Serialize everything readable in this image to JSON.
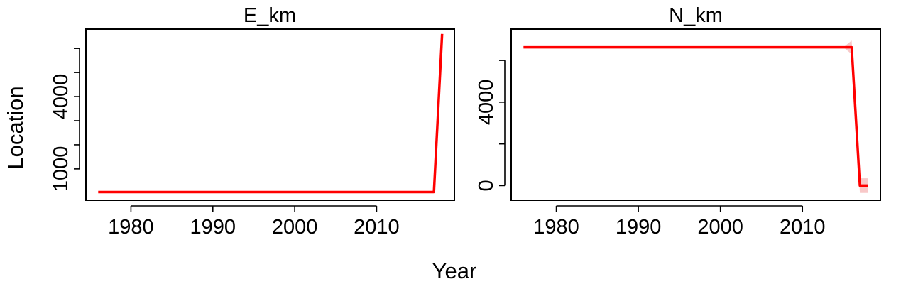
{
  "figure": {
    "shared_xlabel": "Year",
    "shared_ylabel": "Location"
  },
  "chart_data": [
    {
      "type": "line",
      "title": "E_km",
      "xlabel": "Year",
      "ylabel": "Location",
      "xlim": [
        1974.5,
        2019.5
      ],
      "ylim": [
        -300,
        6800
      ],
      "x_ticks": [
        1980,
        1990,
        2000,
        2010
      ],
      "x_tick_labels": [
        "1980",
        "1990",
        "2000",
        "2010"
      ],
      "y_ticks": [
        1000,
        2000,
        3000,
        4000,
        5000,
        6000
      ],
      "y_tick_labels": [
        "1000",
        "",
        "",
        "4000",
        "",
        ""
      ],
      "grid": false,
      "series_color": "#ff0000",
      "band_color": "#f8c8c8",
      "series": [
        {
          "x": [
            1976,
            1977,
            1978,
            1979,
            1980,
            1981,
            1982,
            1983,
            1984,
            1985,
            1986,
            1987,
            1988,
            1989,
            1990,
            1991,
            1992,
            1993,
            1994,
            1995,
            1996,
            1997,
            1998,
            1999,
            2000,
            2001,
            2002,
            2003,
            2004,
            2005,
            2006,
            2007,
            2008,
            2009,
            2010,
            2011,
            2012,
            2013,
            2014,
            2015,
            2016,
            2017,
            2018
          ],
          "values": [
            40,
            40,
            40,
            40,
            40,
            40,
            40,
            40,
            40,
            40,
            40,
            40,
            40,
            40,
            40,
            40,
            40,
            40,
            40,
            40,
            40,
            40,
            40,
            40,
            40,
            40,
            40,
            40,
            40,
            40,
            40,
            40,
            40,
            40,
            40,
            40,
            40,
            40,
            40,
            40,
            40,
            40,
            6600
          ]
        }
      ],
      "band": null
    },
    {
      "type": "line",
      "title": "N_km",
      "xlabel": "Year",
      "ylabel": "Location",
      "xlim": [
        1974.5,
        2019.5
      ],
      "ylim": [
        -700,
        7500
      ],
      "x_ticks": [
        1980,
        1990,
        2000,
        2010
      ],
      "x_tick_labels": [
        "1980",
        "1990",
        "2000",
        "2010"
      ],
      "y_ticks": [
        0,
        2000,
        4000,
        6000
      ],
      "y_tick_labels": [
        "0",
        "",
        "4000",
        ""
      ],
      "grid": false,
      "series_color": "#ff0000",
      "band_color": "#f8c8c8",
      "series": [
        {
          "x": [
            1976,
            1980,
            1985,
            1990,
            1995,
            2000,
            2005,
            2010,
            2015,
            2016,
            2017,
            2018
          ],
          "values": [
            6630,
            6630,
            6630,
            6630,
            6630,
            6630,
            6630,
            6630,
            6630,
            6630,
            0,
            0
          ]
        }
      ],
      "band": {
        "x": [
          2015,
          2016,
          2017,
          2018
        ],
        "lower": [
          6630,
          6300,
          -350,
          -350
        ],
        "upper": [
          6630,
          6950,
          350,
          350
        ]
      }
    }
  ]
}
